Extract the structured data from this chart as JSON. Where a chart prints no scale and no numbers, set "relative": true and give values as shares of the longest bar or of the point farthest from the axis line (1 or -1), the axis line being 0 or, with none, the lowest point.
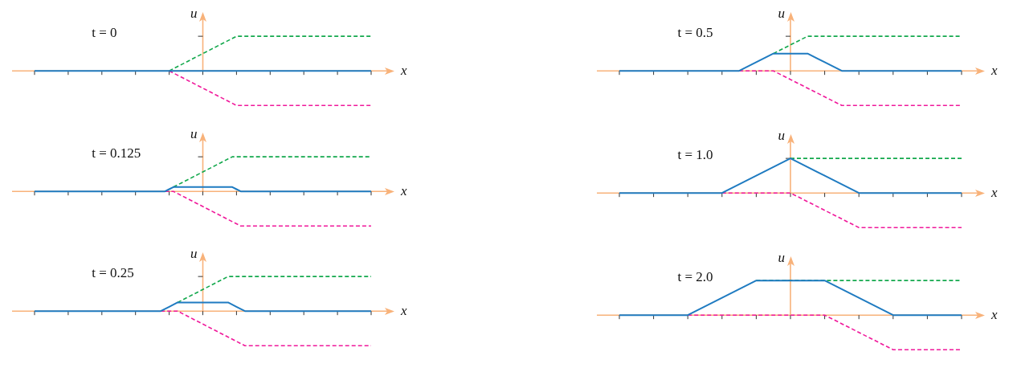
{
  "chart_data": [
    {
      "type": "line",
      "title": "t = 0",
      "xlabel": "x",
      "ylabel": "u",
      "relative": true,
      "categories": [
        null,
        null,
        null,
        null,
        null,
        null,
        null,
        null,
        null,
        null,
        null
      ],
      "ref_lines": [
        {
          "axis": "y",
          "value": 0,
          "color": "#f8b27a"
        }
      ],
      "series": [
        {
          "color": "#1f7bc1",
          "line_style": "solid",
          "values": [
            0,
            0,
            0,
            0,
            0,
            0,
            0,
            0,
            0,
            0,
            0
          ]
        },
        {
          "color": "#12a84c",
          "line_style": "dashed",
          "values": [
            null,
            null,
            null,
            null,
            0,
            0.5,
            1,
            1,
            1,
            1,
            1
          ]
        },
        {
          "color": "#f0199b",
          "line_style": "dashed",
          "values": [
            null,
            null,
            null,
            null,
            0,
            -0.5,
            -1,
            -1,
            -1,
            -1,
            -1
          ]
        }
      ]
    },
    {
      "type": "line",
      "title": "t = 0.5",
      "xlabel": "x",
      "ylabel": "u",
      "relative": true,
      "categories": [
        null,
        null,
        null,
        null,
        null,
        null,
        null,
        null,
        null,
        null,
        null,
        null,
        null,
        null,
        null,
        null,
        null,
        null,
        null,
        null,
        null
      ],
      "ref_lines": [
        {
          "axis": "y",
          "value": 0,
          "color": "#f8b27a"
        }
      ],
      "series": [
        {
          "color": "#1f7bc1",
          "line_style": "solid",
          "values": [
            0,
            0,
            0,
            0,
            0,
            0,
            0,
            0,
            0.25,
            0.5,
            0.5,
            0.5,
            0.25,
            0,
            0,
            0,
            0,
            0,
            0,
            0,
            0
          ]
        },
        {
          "color": "#12a84c",
          "line_style": "dashed",
          "values": [
            null,
            null,
            null,
            null,
            null,
            null,
            null,
            null,
            null,
            0.5,
            0.75,
            1,
            1,
            1,
            1,
            1,
            1,
            1,
            1,
            1,
            1
          ]
        },
        {
          "color": "#f0199b",
          "line_style": "dashed",
          "values": [
            null,
            null,
            null,
            null,
            null,
            null,
            null,
            0,
            0,
            0,
            -0.25,
            -0.5,
            -0.75,
            -1,
            -1,
            -1,
            -1,
            -1,
            -1,
            -1,
            -1
          ]
        }
      ]
    },
    {
      "type": "line",
      "title": "t = 0.125",
      "xlabel": "x",
      "ylabel": "u",
      "relative": true,
      "categories": [
        null,
        null,
        null,
        null,
        null,
        null,
        null,
        null,
        null,
        null,
        null,
        null,
        null,
        null,
        null,
        null,
        null,
        null,
        null,
        null,
        null,
        null,
        null,
        null,
        null,
        null,
        null,
        null,
        null,
        null,
        null,
        null,
        null,
        null,
        null,
        null,
        null,
        null,
        null,
        null,
        null,
        null,
        null,
        null,
        null,
        null,
        null,
        null,
        null,
        null,
        null,
        null,
        null,
        null,
        null,
        null,
        null,
        null,
        null,
        null,
        null,
        null,
        null,
        null,
        null,
        null,
        null,
        null,
        null,
        null,
        null,
        null,
        null,
        null,
        null,
        null,
        null,
        null,
        null,
        null,
        null
      ],
      "ref_lines": [
        {
          "axis": "y",
          "value": 0,
          "color": "#f8b27a"
        }
      ],
      "series": [
        {
          "color": "#1f7bc1",
          "line_style": "solid",
          "values": [
            0,
            0,
            0,
            0,
            0,
            0,
            0,
            0,
            0,
            0,
            0,
            0,
            0,
            0,
            0,
            0,
            0,
            0,
            0,
            0,
            0,
            0,
            0,
            0,
            0,
            0,
            0,
            0,
            0,
            0,
            0,
            0,
            0.0625,
            0.125,
            0.125,
            0.125,
            0.125,
            0.125,
            0.125,
            0.125,
            0.125,
            0.125,
            0.125,
            0.125,
            0.125,
            0.125,
            0.125,
            0.125,
            0.0625,
            0,
            0,
            0,
            0,
            0,
            0,
            0,
            0,
            0,
            0,
            0,
            0,
            0,
            0,
            0,
            0,
            0,
            0,
            0,
            0,
            0,
            0,
            0,
            0,
            0,
            0,
            0,
            0,
            0,
            0,
            0,
            0
          ]
        },
        {
          "color": "#12a84c",
          "line_style": "dashed",
          "values": [
            null,
            null,
            null,
            null,
            null,
            null,
            null,
            null,
            null,
            null,
            null,
            null,
            null,
            null,
            null,
            null,
            null,
            null,
            null,
            null,
            null,
            null,
            null,
            null,
            null,
            null,
            null,
            null,
            null,
            null,
            null,
            null,
            null,
            0.125,
            0.1875,
            0.25,
            0.3125,
            0.375,
            0.4375,
            0.5,
            0.5625,
            0.625,
            0.6875,
            0.75,
            0.8125,
            0.875,
            0.9375,
            1,
            1,
            1,
            1,
            1,
            1,
            1,
            1,
            1,
            1,
            1,
            1,
            1,
            1,
            1,
            1,
            1,
            1,
            1,
            1,
            1,
            1,
            1,
            1,
            1,
            1,
            1,
            1,
            1,
            1,
            1,
            1,
            1,
            1
          ]
        },
        {
          "color": "#f0199b",
          "line_style": "dashed",
          "values": [
            null,
            null,
            null,
            null,
            null,
            null,
            null,
            null,
            null,
            null,
            null,
            null,
            null,
            null,
            null,
            null,
            null,
            null,
            null,
            null,
            null,
            null,
            null,
            null,
            null,
            null,
            null,
            null,
            null,
            null,
            null,
            0,
            0,
            0,
            -0.0625,
            -0.125,
            -0.1875,
            -0.25,
            -0.3125,
            -0.375,
            -0.4375,
            -0.5,
            -0.5625,
            -0.625,
            -0.6875,
            -0.75,
            -0.8125,
            -0.875,
            -0.9375,
            -1,
            -1,
            -1,
            -1,
            -1,
            -1,
            -1,
            -1,
            -1,
            -1,
            -1,
            -1,
            -1,
            -1,
            -1,
            -1,
            -1,
            -1,
            -1,
            -1,
            -1,
            -1,
            -1,
            -1,
            -1,
            -1,
            -1,
            -1,
            -1,
            -1,
            -1,
            -1
          ]
        }
      ]
    },
    {
      "type": "line",
      "title": "t = 1.0",
      "xlabel": "x",
      "ylabel": "u",
      "relative": true,
      "categories": [
        null,
        null,
        null,
        null,
        null,
        null,
        null,
        null,
        null,
        null,
        null
      ],
      "ref_lines": [
        {
          "axis": "y",
          "value": 0,
          "color": "#f8b27a"
        }
      ],
      "series": [
        {
          "color": "#1f7bc1",
          "line_style": "solid",
          "values": [
            0,
            0,
            0,
            0,
            0.5,
            1,
            0.5,
            0,
            0,
            0,
            0
          ]
        },
        {
          "color": "#12a84c",
          "line_style": "dashed",
          "values": [
            null,
            null,
            null,
            null,
            null,
            1,
            1,
            1,
            1,
            1,
            1
          ]
        },
        {
          "color": "#f0199b",
          "line_style": "dashed",
          "values": [
            null,
            null,
            null,
            0,
            0,
            0,
            -0.5,
            -1,
            -1,
            -1,
            -1
          ]
        }
      ]
    },
    {
      "type": "line",
      "title": "t = 0.25",
      "xlabel": "x",
      "ylabel": "u",
      "relative": true,
      "categories": [
        null,
        null,
        null,
        null,
        null,
        null,
        null,
        null,
        null,
        null,
        null,
        null,
        null,
        null,
        null,
        null,
        null,
        null,
        null,
        null,
        null,
        null,
        null,
        null,
        null,
        null,
        null,
        null,
        null,
        null,
        null,
        null,
        null,
        null,
        null,
        null,
        null,
        null,
        null,
        null,
        null
      ],
      "ref_lines": [
        {
          "axis": "y",
          "value": 0,
          "color": "#f8b27a"
        }
      ],
      "series": [
        {
          "color": "#1f7bc1",
          "line_style": "solid",
          "values": [
            0,
            0,
            0,
            0,
            0,
            0,
            0,
            0,
            0,
            0,
            0,
            0,
            0,
            0,
            0,
            0,
            0.125,
            0.25,
            0.25,
            0.25,
            0.25,
            0.25,
            0.25,
            0.25,
            0.125,
            0,
            0,
            0,
            0,
            0,
            0,
            0,
            0,
            0,
            0,
            0,
            0,
            0,
            0,
            0,
            0
          ]
        },
        {
          "color": "#12a84c",
          "line_style": "dashed",
          "values": [
            null,
            null,
            null,
            null,
            null,
            null,
            null,
            null,
            null,
            null,
            null,
            null,
            null,
            null,
            null,
            null,
            null,
            0.25,
            0.375,
            0.5,
            0.625,
            0.75,
            0.875,
            1,
            1,
            1,
            1,
            1,
            1,
            1,
            1,
            1,
            1,
            1,
            1,
            1,
            1,
            1,
            1,
            1,
            1
          ]
        },
        {
          "color": "#f0199b",
          "line_style": "dashed",
          "values": [
            null,
            null,
            null,
            null,
            null,
            null,
            null,
            null,
            null,
            null,
            null,
            null,
            null,
            null,
            null,
            0,
            0,
            0,
            -0.125,
            -0.25,
            -0.375,
            -0.5,
            -0.625,
            -0.75,
            -0.875,
            -1,
            -1,
            -1,
            -1,
            -1,
            -1,
            -1,
            -1,
            -1,
            -1,
            -1,
            -1,
            -1,
            -1,
            -1,
            -1
          ]
        }
      ]
    },
    {
      "type": "line",
      "title": "t = 2.0",
      "xlabel": "x",
      "ylabel": "u",
      "relative": true,
      "categories": [
        null,
        null,
        null,
        null,
        null,
        null,
        null,
        null,
        null,
        null,
        null
      ],
      "ref_lines": [
        {
          "axis": "y",
          "value": 0,
          "color": "#f8b27a"
        }
      ],
      "series": [
        {
          "color": "#1f7bc1",
          "line_style": "solid",
          "values": [
            0,
            0,
            0,
            0.5,
            1,
            1,
            1,
            0.5,
            0,
            0,
            0
          ]
        },
        {
          "color": "#12a84c",
          "line_style": "dashed",
          "values": [
            null,
            null,
            null,
            null,
            1,
            1,
            1,
            1,
            1,
            1,
            1
          ]
        },
        {
          "color": "#f0199b",
          "line_style": "dashed",
          "values": [
            null,
            null,
            0,
            0,
            0,
            0,
            0,
            -0.5,
            -1,
            -1,
            -1
          ]
        }
      ]
    }
  ]
}
